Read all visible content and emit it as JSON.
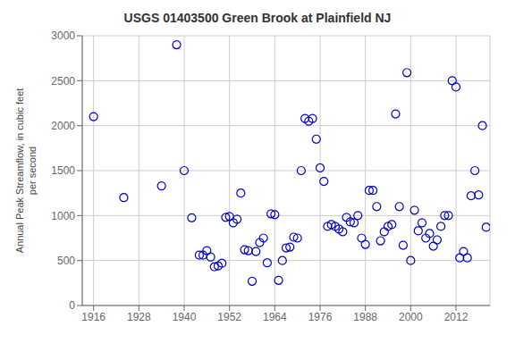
{
  "chart_data": {
    "type": "scatter",
    "title": "USGS 01403500 Green Brook at Plainfield NJ",
    "ylabel": "Annual Peak Streamflow, in cubic feet\nper second",
    "x": [
      1916,
      1924,
      1934,
      1938,
      1940,
      1942,
      1944,
      1945,
      1946,
      1947,
      1948,
      1949,
      1950,
      1951,
      1952,
      1953,
      1954,
      1955,
      1956,
      1957,
      1958,
      1959,
      1960,
      1961,
      1962,
      1963,
      1964,
      1965,
      1966,
      1967,
      1968,
      1969,
      1970,
      1971,
      1972,
      1973,
      1974,
      1975,
      1976,
      1977,
      1978,
      1979,
      1980,
      1981,
      1982,
      1983,
      1984,
      1985,
      1986,
      1987,
      1988,
      1989,
      1990,
      1991,
      1992,
      1993,
      1994,
      1995,
      1996,
      1997,
      1998,
      1999,
      2000,
      2001,
      2002,
      2003,
      2004,
      2005,
      2006,
      2007,
      2008,
      2009,
      2010,
      2011,
      2012,
      2013,
      2014,
      2015,
      2016,
      2017,
      2018,
      2019,
      2020
    ],
    "values": [
      2100,
      1200,
      1330,
      2900,
      1500,
      975,
      560,
      560,
      610,
      540,
      430,
      440,
      470,
      980,
      990,
      920,
      960,
      1250,
      620,
      610,
      270,
      600,
      700,
      750,
      475,
      1020,
      1010,
      280,
      500,
      640,
      650,
      760,
      750,
      1500,
      2080,
      2050,
      2080,
      1850,
      1530,
      1380,
      880,
      900,
      880,
      850,
      820,
      980,
      930,
      920,
      1000,
      750,
      680,
      1280,
      1280,
      1100,
      720,
      820,
      880,
      900,
      2130,
      1100,
      670,
      2590,
      500,
      1060,
      830,
      920,
      750,
      800,
      660,
      730,
      880,
      1000,
      1000,
      2500,
      2430,
      530,
      600,
      530,
      1220,
      1500,
      1230,
      2000,
      870
    ],
    "color": "#0000CC",
    "marker": "circle",
    "xlim": [
      1913,
      2021
    ],
    "ylim": [
      0,
      3000
    ],
    "xticks": [
      1916,
      1928,
      1940,
      1952,
      1964,
      1976,
      1988,
      2000,
      2012
    ],
    "yticks": [
      0,
      500,
      1000,
      1500,
      2000,
      2500,
      3000
    ],
    "grid": true
  }
}
